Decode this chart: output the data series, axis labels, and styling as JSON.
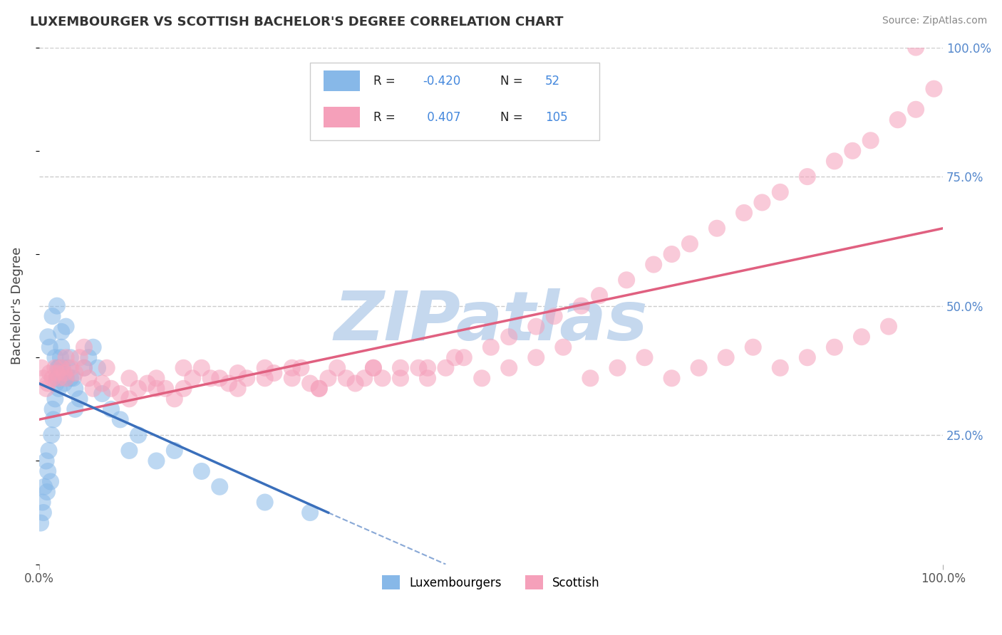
{
  "title": "LUXEMBOURGER VS SCOTTISH BACHELOR'S DEGREE CORRELATION CHART",
  "source": "Source: ZipAtlas.com",
  "ylabel": "Bachelor's Degree",
  "legend_blue_label": "Luxembourgers",
  "legend_pink_label": "Scottish",
  "R_blue": -0.42,
  "N_blue": 52,
  "R_pink": 0.407,
  "N_pink": 105,
  "blue_color": "#87b8e8",
  "pink_color": "#f5a0ba",
  "blue_line_color": "#3a6fbb",
  "pink_line_color": "#e06080",
  "watermark": "ZIPatlas",
  "watermark_color": "#c5d8ee",
  "background_color": "#ffffff",
  "grid_color": "#cccccc",
  "title_color": "#333333",
  "source_color": "#888888",
  "axis_label_color": "#555555",
  "right_tick_color": "#5588cc",
  "legend_text_color": "#222222",
  "legend_value_color": "#4488dd",
  "blue_scatter_x": [
    0.2,
    0.4,
    0.5,
    0.6,
    0.8,
    0.9,
    1.0,
    1.1,
    1.3,
    1.4,
    1.5,
    1.6,
    1.8,
    1.9,
    2.0,
    2.1,
    2.2,
    2.4,
    2.5,
    2.6,
    2.8,
    3.0,
    3.2,
    3.5,
    3.8,
    4.0,
    4.5,
    5.0,
    5.5,
    6.0,
    6.5,
    7.0,
    8.0,
    9.0,
    10.0,
    11.0,
    13.0,
    15.0,
    18.0,
    20.0,
    25.0,
    30.0,
    1.0,
    1.5,
    2.0,
    2.5,
    3.0,
    1.2,
    1.8,
    2.2,
    3.5,
    4.0
  ],
  "blue_scatter_y": [
    8,
    12,
    10,
    15,
    20,
    14,
    18,
    22,
    16,
    25,
    30,
    28,
    32,
    35,
    36,
    38,
    34,
    40,
    42,
    38,
    35,
    36,
    38,
    40,
    36,
    34,
    32,
    38,
    40,
    42,
    38,
    33,
    30,
    28,
    22,
    25,
    20,
    22,
    18,
    15,
    12,
    10,
    44,
    48,
    50,
    45,
    46,
    42,
    40,
    38,
    36,
    30
  ],
  "pink_scatter_x": [
    0.3,
    0.5,
    0.8,
    1.0,
    1.2,
    1.5,
    1.8,
    2.0,
    2.2,
    2.5,
    2.8,
    3.0,
    3.5,
    4.0,
    4.5,
    5.0,
    5.5,
    6.0,
    7.0,
    8.0,
    9.0,
    10.0,
    11.0,
    12.0,
    13.0,
    14.0,
    15.0,
    16.0,
    17.0,
    18.0,
    20.0,
    21.0,
    22.0,
    23.0,
    25.0,
    26.0,
    28.0,
    29.0,
    30.0,
    31.0,
    32.0,
    33.0,
    35.0,
    36.0,
    37.0,
    38.0,
    40.0,
    42.0,
    43.0,
    45.0,
    47.0,
    50.0,
    52.0,
    55.0,
    57.0,
    60.0,
    62.0,
    65.0,
    68.0,
    70.0,
    72.0,
    75.0,
    78.0,
    80.0,
    82.0,
    85.0,
    88.0,
    90.0,
    92.0,
    95.0,
    97.0,
    99.0,
    3.0,
    5.0,
    7.5,
    10.0,
    13.0,
    16.0,
    19.0,
    22.0,
    25.0,
    28.0,
    31.0,
    34.0,
    37.0,
    40.0,
    43.0,
    46.0,
    49.0,
    52.0,
    55.0,
    58.0,
    61.0,
    64.0,
    67.0,
    70.0,
    73.0,
    76.0,
    79.0,
    82.0,
    85.0,
    88.0,
    91.0,
    94.0,
    97.0
  ],
  "pink_scatter_y": [
    38,
    36,
    34,
    35,
    37,
    36,
    38,
    37,
    36,
    38,
    37,
    36,
    38,
    37,
    40,
    38,
    36,
    34,
    35,
    34,
    33,
    32,
    34,
    35,
    36,
    34,
    32,
    34,
    36,
    38,
    36,
    35,
    37,
    36,
    38,
    37,
    36,
    38,
    35,
    34,
    36,
    38,
    35,
    36,
    38,
    36,
    38,
    38,
    36,
    38,
    40,
    42,
    44,
    46,
    48,
    50,
    52,
    55,
    58,
    60,
    62,
    65,
    68,
    70,
    72,
    75,
    78,
    80,
    82,
    86,
    88,
    92,
    40,
    42,
    38,
    36,
    34,
    38,
    36,
    34,
    36,
    38,
    34,
    36,
    38,
    36,
    38,
    40,
    36,
    38,
    40,
    42,
    36,
    38,
    40,
    36,
    38,
    40,
    42,
    38,
    40,
    42,
    44,
    46,
    100
  ]
}
